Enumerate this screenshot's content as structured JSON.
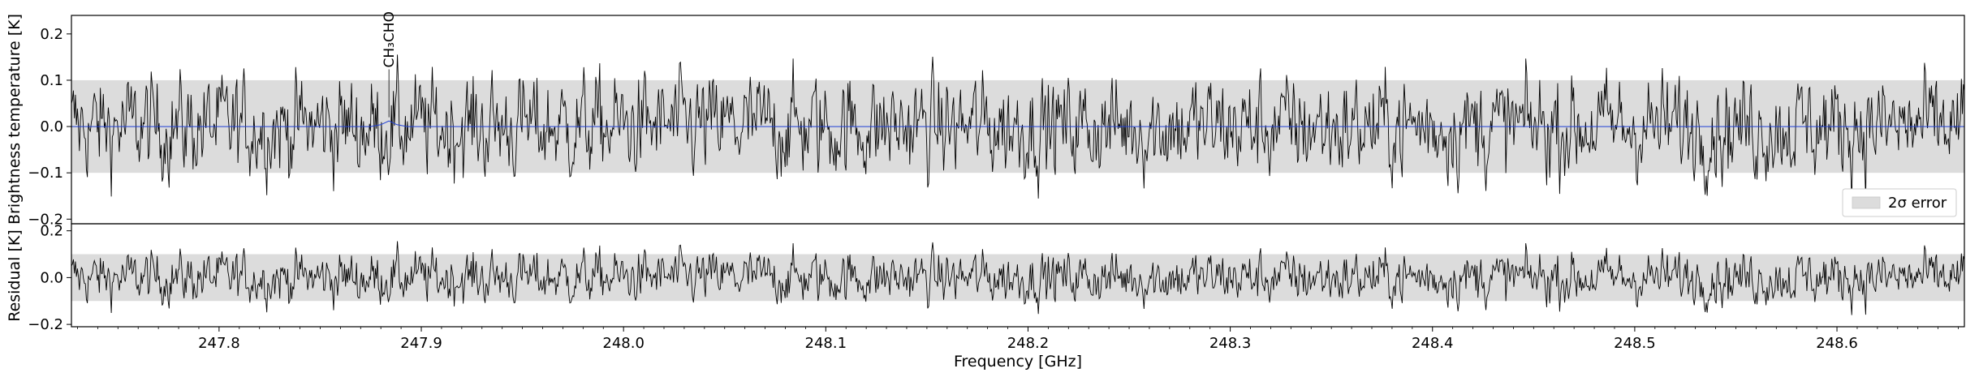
{
  "chart_data": [
    {
      "type": "line",
      "panel": "spectrum",
      "xlabel": "",
      "ylabel": "Brightness temperature [K]",
      "xlim": [
        247.727,
        248.663
      ],
      "ylim": [
        -0.21,
        0.24
      ],
      "yticks": [
        -0.2,
        -0.1,
        0.0,
        0.1,
        0.2
      ],
      "ytick_labels": [
        "−0.2",
        "−0.1",
        "0.0",
        "0.1",
        "0.2"
      ],
      "error_band": [
        -0.1,
        0.1
      ],
      "legend": {
        "label": "2σ error",
        "position": "lower-right"
      },
      "annotations": [
        {
          "label": "CH₃CHO",
          "x": 247.884,
          "y": 0.12
        }
      ],
      "series": [
        {
          "style": "observed",
          "color": "#000000",
          "x_start": 247.727,
          "x_end": 248.663,
          "amplitude_range": [
            -0.18,
            0.16
          ],
          "values_sample": [
            0.03,
            -0.06,
            0.08,
            -0.12,
            0.15,
            -0.04,
            0.02,
            -0.18,
            0.11,
            -0.05,
            0.07,
            -0.09,
            0.12,
            0.04,
            -0.07,
            0.1,
            -0.13,
            0.06,
            -0.02,
            0.09,
            -0.11,
            0.14,
            -0.06,
            0.03
          ]
        },
        {
          "style": "model",
          "color": "#1f3fd6",
          "x": [
            247.727,
            247.875,
            247.88,
            247.884,
            247.888,
            247.893,
            248.663
          ],
          "values": [
            0.0,
            0.0,
            0.004,
            0.012,
            0.004,
            0.0,
            0.0
          ]
        }
      ]
    },
    {
      "type": "line",
      "panel": "residual",
      "xlabel": "Frequency [GHz]",
      "ylabel": "Residual [K]",
      "xlim": [
        247.727,
        248.663
      ],
      "ylim": [
        -0.21,
        0.23
      ],
      "yticks": [
        -0.2,
        0.0,
        0.2
      ],
      "ytick_labels": [
        "−0.2",
        "0.0",
        "0.2"
      ],
      "xticks": [
        247.8,
        247.9,
        248.0,
        248.1,
        248.2,
        248.3,
        248.4,
        248.5,
        248.6
      ],
      "xtick_labels": [
        "247.8",
        "247.9",
        "248.0",
        "248.1",
        "248.2",
        "248.3",
        "248.4",
        "248.5",
        "248.6"
      ],
      "error_band": [
        -0.1,
        0.1
      ],
      "series": [
        {
          "style": "residual",
          "color": "#000000",
          "amplitude_range": [
            -0.18,
            0.16
          ]
        }
      ]
    }
  ]
}
